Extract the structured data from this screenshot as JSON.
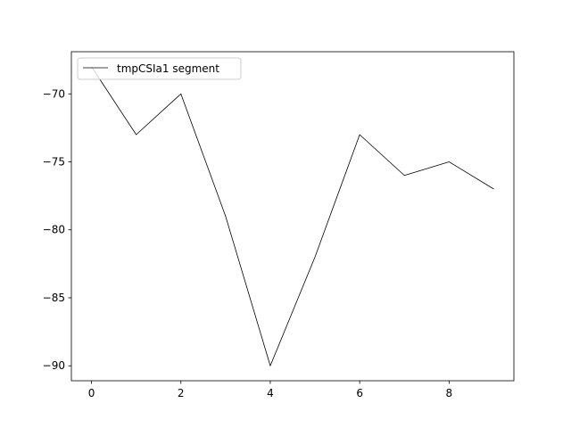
{
  "chart_data": {
    "type": "line",
    "title": "",
    "xlabel": "",
    "ylabel": "",
    "x": [
      0,
      1,
      2,
      3,
      4,
      5,
      6,
      7,
      8,
      9
    ],
    "series": [
      {
        "name": "tmpCSIa1 segment",
        "values": [
          -68,
          -73,
          -70,
          -79,
          -90,
          -82,
          -73,
          -76,
          -75,
          -77
        ],
        "color": "#000000"
      }
    ],
    "xlim": [
      -0.45,
      9.45
    ],
    "ylim": [
      -91.1,
      -66.9
    ],
    "xticks": [
      0,
      2,
      4,
      6,
      8
    ],
    "xtick_labels": [
      "0",
      "2",
      "4",
      "6",
      "8"
    ],
    "yticks": [
      -90,
      -85,
      -80,
      -75,
      -70
    ],
    "ytick_labels": [
      "−90",
      "−85",
      "−80",
      "−75",
      "−70"
    ],
    "grid": false,
    "legend_position": "top-left"
  }
}
